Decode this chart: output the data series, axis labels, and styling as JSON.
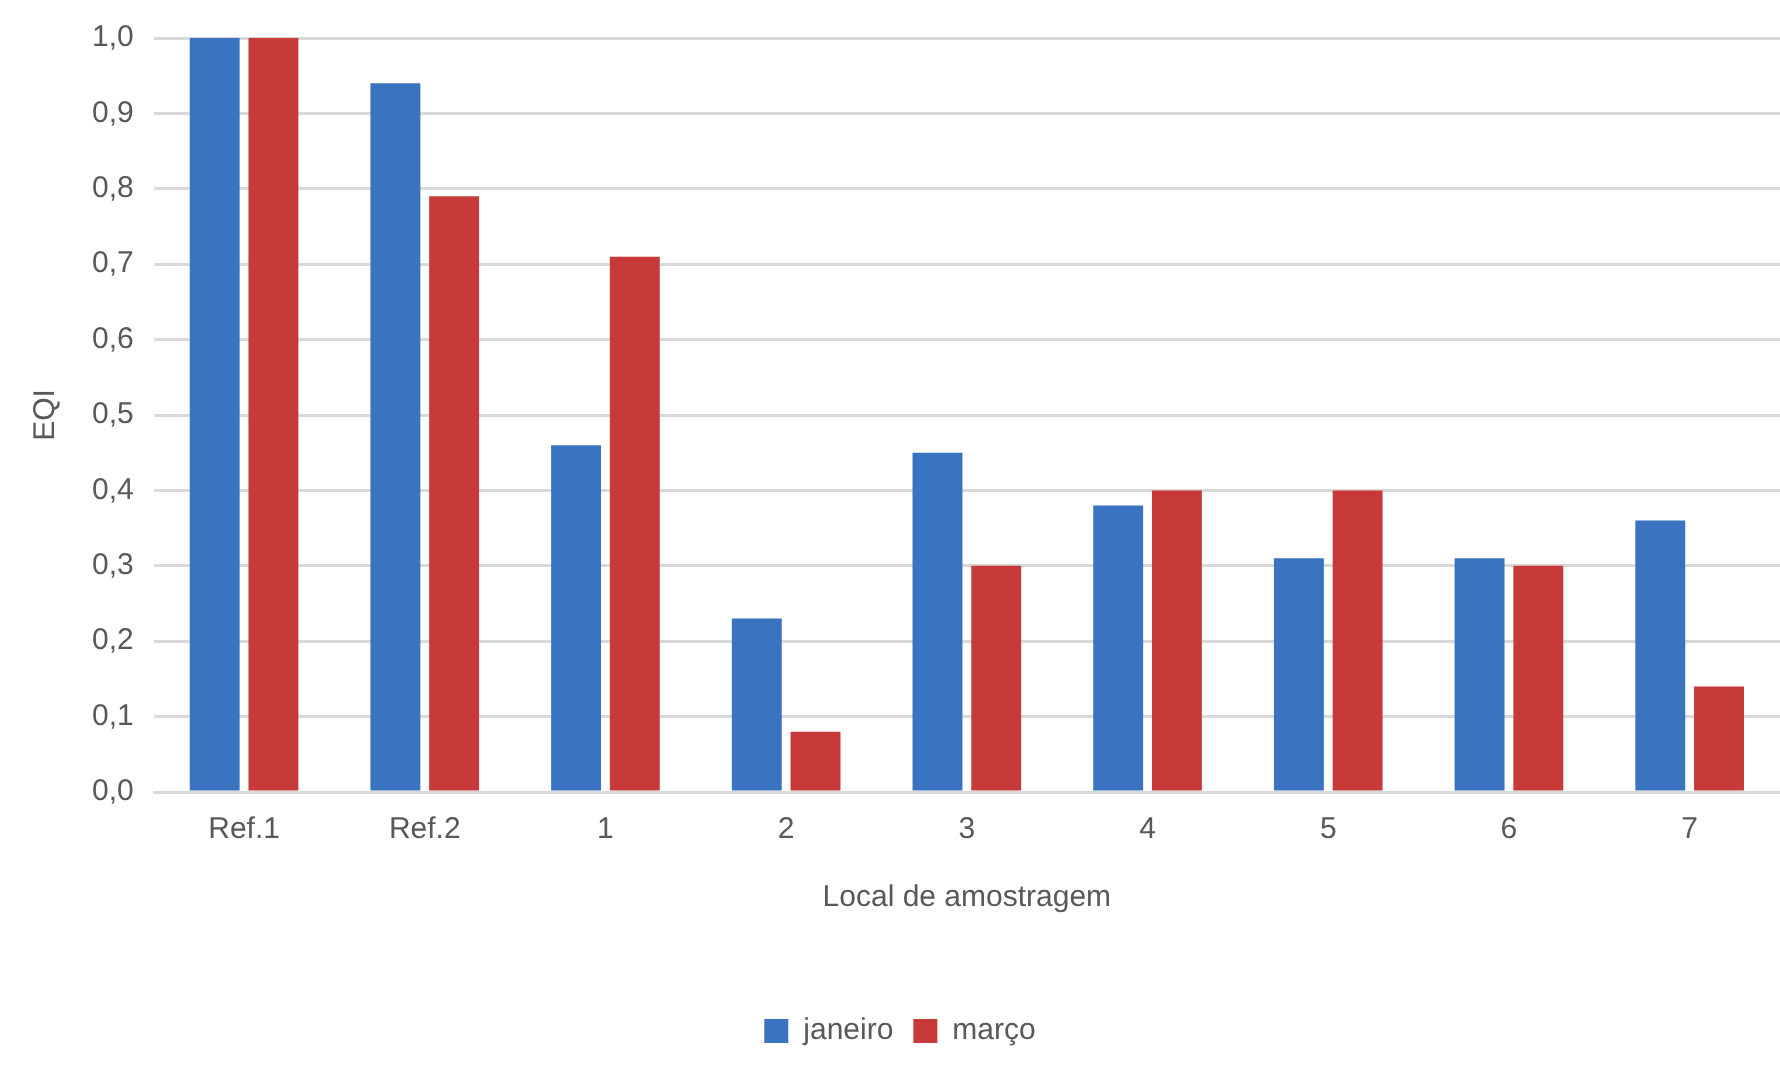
{
  "chart_data": {
    "type": "bar",
    "xlabel": "Local de amostragem",
    "ylabel": "EQI",
    "categories": [
      "Ref.1",
      "Ref.2",
      "1",
      "2",
      "3",
      "4",
      "5",
      "6",
      "7"
    ],
    "series": [
      {
        "name": "janeiro",
        "color": "#3a73c0",
        "values": [
          1.0,
          0.94,
          0.46,
          0.23,
          0.45,
          0.38,
          0.31,
          0.31,
          0.36
        ]
      },
      {
        "name": "março",
        "color": "#c83a3a",
        "values": [
          1.0,
          0.79,
          0.71,
          0.08,
          0.3,
          0.4,
          0.4,
          0.3,
          0.14
        ]
      }
    ],
    "ylim": [
      0,
      1
    ],
    "yticks": [
      {
        "value": 0,
        "label": "0,0"
      },
      {
        "value": 0.1,
        "label": "0,1"
      },
      {
        "value": 0.2,
        "label": "0,2"
      },
      {
        "value": 0.3,
        "label": "0,3"
      },
      {
        "value": 0.4,
        "label": "0,4"
      },
      {
        "value": 0.5,
        "label": "0,5"
      },
      {
        "value": 0.6,
        "label": "0,6"
      },
      {
        "value": 0.7,
        "label": "0,7"
      },
      {
        "value": 0.8,
        "label": "0,8"
      },
      {
        "value": 0.9,
        "label": "0,9"
      },
      {
        "value": 1,
        "label": "1,0"
      }
    ],
    "grid": "y",
    "legend": "bottom"
  }
}
